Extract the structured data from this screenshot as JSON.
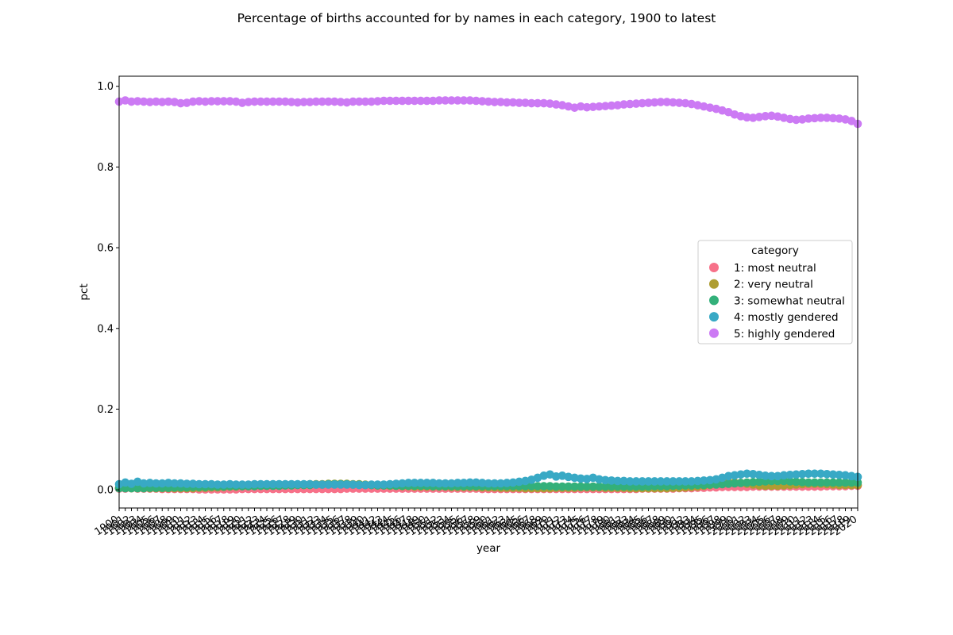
{
  "chart_data": {
    "type": "line",
    "title": "Percentage of births accounted for by names in each category, 1900 to latest",
    "xlabel": "year",
    "ylabel": "pct",
    "x_start_year": 1900,
    "x_end_year": 2020,
    "ylim": [
      -0.045,
      1.025
    ],
    "yticks": [
      "0.0",
      "0.2",
      "0.4",
      "0.6",
      "0.8",
      "1.0"
    ],
    "ytick_values": [
      0.0,
      0.2,
      0.4,
      0.6,
      0.8,
      1.0
    ],
    "grid": false,
    "legend": {
      "title": "category",
      "placement": "center-right"
    },
    "series": [
      {
        "name": "1: most neutral",
        "color": "#f77189",
        "values": [
          0.003,
          0.003,
          0.004,
          0.003,
          0.003,
          0.003,
          0.003,
          0.002,
          0.002,
          0.002,
          0.002,
          0.002,
          0.002,
          0.001,
          0.001,
          0.001,
          0.001,
          0.001,
          0.001,
          0.001,
          0.002,
          0.002,
          0.002,
          0.002,
          0.002,
          0.002,
          0.002,
          0.002,
          0.002,
          0.002,
          0.002,
          0.002,
          0.002,
          0.002,
          0.002,
          0.002,
          0.002,
          0.003,
          0.003,
          0.003,
          0.003,
          0.003,
          0.003,
          0.003,
          0.003,
          0.003,
          0.003,
          0.003,
          0.003,
          0.003,
          0.003,
          0.003,
          0.003,
          0.003,
          0.003,
          0.003,
          0.003,
          0.003,
          0.003,
          0.002,
          0.002,
          0.002,
          0.002,
          0.002,
          0.002,
          0.002,
          0.002,
          0.002,
          0.002,
          0.002,
          0.002,
          0.002,
          0.002,
          0.002,
          0.002,
          0.002,
          0.002,
          0.002,
          0.002,
          0.002,
          0.002,
          0.002,
          0.002,
          0.002,
          0.002,
          0.003,
          0.003,
          0.003,
          0.003,
          0.003,
          0.003,
          0.004,
          0.004,
          0.004,
          0.005,
          0.005,
          0.006,
          0.006,
          0.007,
          0.007,
          0.007,
          0.007,
          0.007,
          0.008,
          0.008,
          0.008,
          0.008,
          0.008,
          0.008,
          0.008,
          0.008,
          0.008,
          0.008,
          0.008,
          0.008,
          0.009,
          0.009,
          0.009,
          0.009,
          0.01,
          0.01
        ]
      },
      {
        "name": "2: very neutral",
        "color": "#ae9d31",
        "values": [
          0.005,
          0.005,
          0.004,
          0.004,
          0.004,
          0.004,
          0.004,
          0.004,
          0.004,
          0.004,
          0.004,
          0.004,
          0.004,
          0.005,
          0.005,
          0.006,
          0.006,
          0.007,
          0.008,
          0.008,
          0.009,
          0.009,
          0.01,
          0.01,
          0.01,
          0.011,
          0.011,
          0.012,
          0.012,
          0.013,
          0.013,
          0.014,
          0.014,
          0.014,
          0.015,
          0.015,
          0.015,
          0.015,
          0.014,
          0.014,
          0.013,
          0.012,
          0.011,
          0.011,
          0.01,
          0.01,
          0.009,
          0.009,
          0.008,
          0.008,
          0.008,
          0.008,
          0.008,
          0.008,
          0.007,
          0.007,
          0.007,
          0.007,
          0.007,
          0.006,
          0.006,
          0.006,
          0.005,
          0.005,
          0.005,
          0.005,
          0.004,
          0.004,
          0.004,
          0.004,
          0.004,
          0.005,
          0.005,
          0.005,
          0.005,
          0.006,
          0.006,
          0.006,
          0.006,
          0.005,
          0.005,
          0.005,
          0.005,
          0.004,
          0.004,
          0.004,
          0.004,
          0.004,
          0.004,
          0.004,
          0.005,
          0.005,
          0.006,
          0.007,
          0.008,
          0.01,
          0.012,
          0.014,
          0.016,
          0.018,
          0.018,
          0.017,
          0.015,
          0.013,
          0.011,
          0.01,
          0.01,
          0.01,
          0.011,
          0.012,
          0.013,
          0.014,
          0.015,
          0.015,
          0.015,
          0.014,
          0.013,
          0.012,
          0.012,
          0.012,
          0.012
        ]
      },
      {
        "name": "3: somewhat neutral",
        "color": "#33b07a",
        "values": [
          0.004,
          0.004,
          0.004,
          0.004,
          0.004,
          0.005,
          0.005,
          0.005,
          0.005,
          0.006,
          0.006,
          0.006,
          0.007,
          0.007,
          0.007,
          0.008,
          0.008,
          0.008,
          0.009,
          0.009,
          0.009,
          0.009,
          0.009,
          0.01,
          0.01,
          0.01,
          0.01,
          0.011,
          0.011,
          0.012,
          0.012,
          0.012,
          0.013,
          0.013,
          0.014,
          0.014,
          0.014,
          0.014,
          0.013,
          0.013,
          0.012,
          0.012,
          0.011,
          0.011,
          0.011,
          0.01,
          0.01,
          0.01,
          0.01,
          0.01,
          0.01,
          0.009,
          0.009,
          0.009,
          0.009,
          0.009,
          0.009,
          0.009,
          0.009,
          0.009,
          0.009,
          0.009,
          0.009,
          0.009,
          0.009,
          0.009,
          0.009,
          0.009,
          0.009,
          0.009,
          0.009,
          0.008,
          0.008,
          0.008,
          0.008,
          0.008,
          0.008,
          0.008,
          0.008,
          0.008,
          0.008,
          0.008,
          0.008,
          0.008,
          0.008,
          0.008,
          0.008,
          0.009,
          0.009,
          0.009,
          0.01,
          0.01,
          0.011,
          0.011,
          0.012,
          0.012,
          0.013,
          0.013,
          0.014,
          0.015,
          0.016,
          0.017,
          0.018,
          0.019,
          0.02,
          0.021,
          0.022,
          0.022,
          0.022,
          0.021,
          0.02,
          0.019,
          0.018,
          0.018,
          0.018,
          0.018,
          0.018,
          0.018,
          0.018,
          0.018,
          0.018
        ]
      },
      {
        "name": "4: mostly gendered",
        "color": "#38a9c5",
        "values": [
          0.014,
          0.018,
          0.015,
          0.02,
          0.016,
          0.017,
          0.016,
          0.016,
          0.017,
          0.016,
          0.016,
          0.015,
          0.015,
          0.014,
          0.014,
          0.014,
          0.013,
          0.013,
          0.014,
          0.013,
          0.013,
          0.013,
          0.014,
          0.014,
          0.014,
          0.014,
          0.014,
          0.014,
          0.014,
          0.014,
          0.014,
          0.014,
          0.013,
          0.013,
          0.013,
          0.013,
          0.013,
          0.013,
          0.013,
          0.012,
          0.012,
          0.013,
          0.013,
          0.013,
          0.014,
          0.015,
          0.016,
          0.017,
          0.017,
          0.017,
          0.017,
          0.017,
          0.016,
          0.016,
          0.016,
          0.017,
          0.017,
          0.018,
          0.018,
          0.017,
          0.016,
          0.016,
          0.016,
          0.017,
          0.018,
          0.02,
          0.022,
          0.025,
          0.03,
          0.035,
          0.038,
          0.033,
          0.035,
          0.032,
          0.03,
          0.028,
          0.027,
          0.03,
          0.026,
          0.024,
          0.023,
          0.022,
          0.022,
          0.021,
          0.021,
          0.021,
          0.021,
          0.021,
          0.021,
          0.021,
          0.021,
          0.021,
          0.021,
          0.021,
          0.022,
          0.023,
          0.024,
          0.026,
          0.03,
          0.034,
          0.036,
          0.038,
          0.04,
          0.039,
          0.037,
          0.035,
          0.034,
          0.034,
          0.036,
          0.037,
          0.038,
          0.039,
          0.04,
          0.04,
          0.04,
          0.039,
          0.038,
          0.037,
          0.036,
          0.034,
          0.032
        ]
      },
      {
        "name": "5: highly gendered",
        "color": "#cc7af4",
        "values": [
          0.962,
          0.965,
          0.962,
          0.963,
          0.962,
          0.961,
          0.962,
          0.961,
          0.962,
          0.961,
          0.958,
          0.959,
          0.962,
          0.963,
          0.962,
          0.963,
          0.963,
          0.963,
          0.963,
          0.962,
          0.959,
          0.961,
          0.962,
          0.962,
          0.962,
          0.962,
          0.962,
          0.962,
          0.961,
          0.96,
          0.961,
          0.961,
          0.962,
          0.962,
          0.962,
          0.962,
          0.961,
          0.96,
          0.962,
          0.962,
          0.962,
          0.962,
          0.963,
          0.964,
          0.964,
          0.964,
          0.964,
          0.964,
          0.964,
          0.964,
          0.964,
          0.964,
          0.965,
          0.965,
          0.965,
          0.965,
          0.965,
          0.965,
          0.964,
          0.963,
          0.962,
          0.961,
          0.961,
          0.96,
          0.96,
          0.959,
          0.959,
          0.958,
          0.958,
          0.958,
          0.957,
          0.955,
          0.953,
          0.95,
          0.947,
          0.95,
          0.948,
          0.949,
          0.95,
          0.951,
          0.952,
          0.953,
          0.955,
          0.956,
          0.957,
          0.958,
          0.959,
          0.96,
          0.961,
          0.961,
          0.96,
          0.959,
          0.958,
          0.956,
          0.953,
          0.95,
          0.947,
          0.944,
          0.94,
          0.936,
          0.93,
          0.926,
          0.923,
          0.922,
          0.924,
          0.926,
          0.927,
          0.925,
          0.922,
          0.919,
          0.917,
          0.918,
          0.92,
          0.921,
          0.922,
          0.922,
          0.921,
          0.92,
          0.918,
          0.914,
          0.907
        ]
      }
    ]
  }
}
